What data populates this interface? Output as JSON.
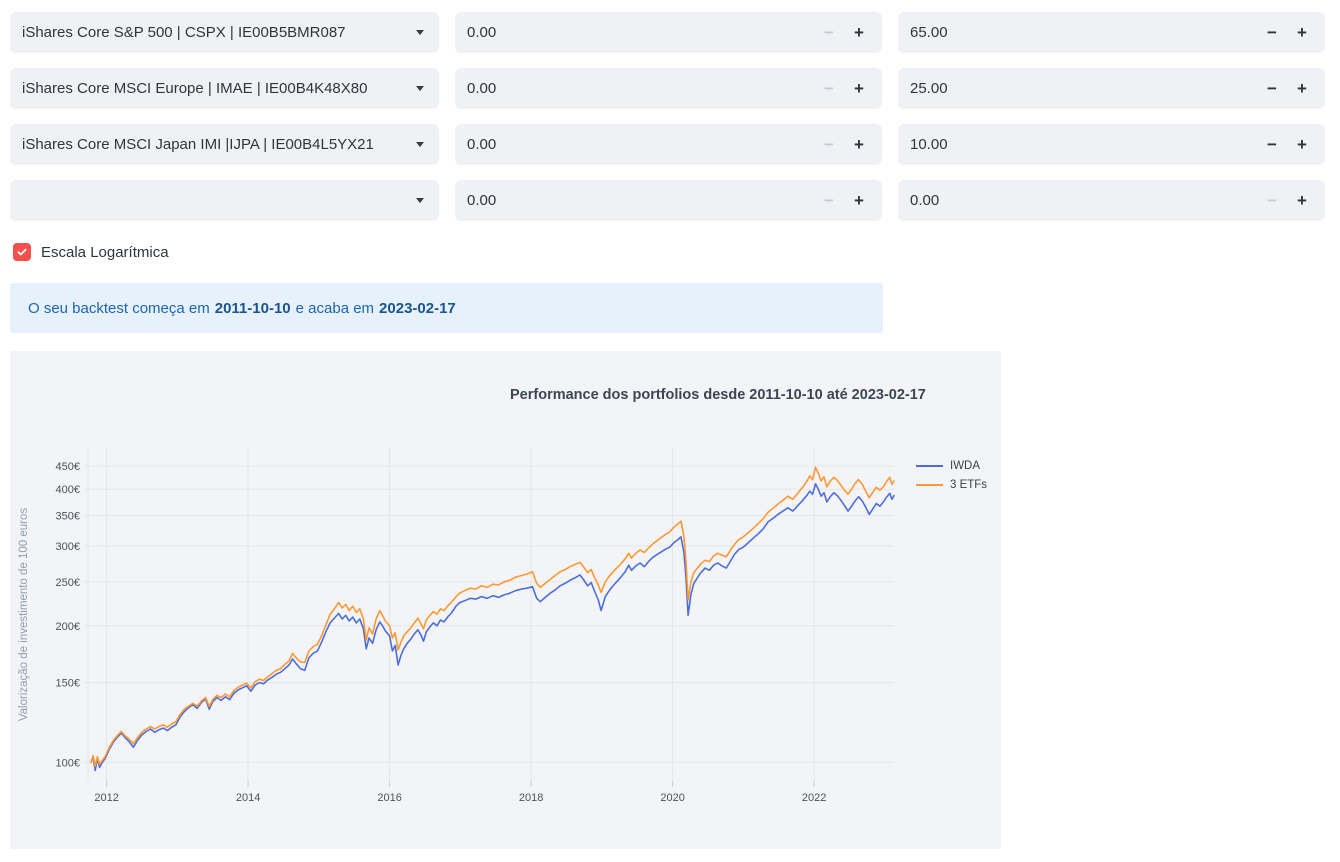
{
  "controls": {
    "minus_label": "−",
    "plus_label": "+",
    "rows": [
      {
        "fund": "iShares Core S&P 500 | CSPX | IE00B5BMR087",
        "value_a": "0.00",
        "value_b": "65.00",
        "a_minus_disabled": true,
        "b_minus_disabled": false
      },
      {
        "fund": "iShares Core MSCI Europe | IMAE | IE00B4K48X80",
        "value_a": "0.00",
        "value_b": "25.00",
        "a_minus_disabled": true,
        "b_minus_disabled": false
      },
      {
        "fund": "iShares Core MSCI Japan IMI |IJPA | IE00B4L5YX21",
        "value_a": "0.00",
        "value_b": "10.00",
        "a_minus_disabled": true,
        "b_minus_disabled": false
      },
      {
        "fund": "",
        "value_a": "0.00",
        "value_b": "0.00",
        "a_minus_disabled": true,
        "b_minus_disabled": true
      }
    ]
  },
  "log_scale_checkbox": {
    "label": "Escala Logarítmica",
    "checked": true,
    "color": "#f4514e"
  },
  "alert": {
    "text_before": "O seu backtest começa em",
    "start_date": "2011-10-10",
    "text_middle": "e acaba em",
    "end_date": "2023-02-17"
  },
  "chart_data": {
    "type": "line",
    "title": "Performance dos portfolios desde 2011-10-10 até 2023-02-17",
    "ylabel": "Valorização de investimento de 100 euros",
    "y_scale": "log",
    "grid": true,
    "legend_position": "right",
    "y_ticks": [
      100,
      150,
      200,
      250,
      300,
      350,
      400,
      450
    ],
    "y_tick_suffix": "€",
    "x_ticks": [
      2012,
      2014,
      2016,
      2018,
      2020,
      2022
    ],
    "xlim": [
      2011.78,
      2023.13
    ],
    "ylim": [
      91,
      493
    ],
    "grid_color": "#e3e6eb",
    "tick_color": "#c9ced6",
    "x": [
      2011.78,
      2011.81,
      2011.84,
      2011.87,
      2011.9,
      2011.94,
      2011.98,
      2012.04,
      2012.1,
      2012.16,
      2012.21,
      2012.26,
      2012.32,
      2012.38,
      2012.44,
      2012.5,
      2012.56,
      2012.62,
      2012.68,
      2012.74,
      2012.8,
      2012.86,
      2012.92,
      2012.98,
      2013.04,
      2013.1,
      2013.16,
      2013.22,
      2013.28,
      2013.34,
      2013.4,
      2013.45,
      2013.5,
      2013.56,
      2013.62,
      2013.68,
      2013.74,
      2013.8,
      2013.86,
      2013.92,
      2013.98,
      2014.04,
      2014.1,
      2014.16,
      2014.22,
      2014.28,
      2014.34,
      2014.4,
      2014.46,
      2014.52,
      2014.58,
      2014.63,
      2014.68,
      2014.74,
      2014.8,
      2014.86,
      2014.92,
      2014.98,
      2015.04,
      2015.1,
      2015.16,
      2015.22,
      2015.28,
      2015.33,
      2015.38,
      2015.43,
      2015.48,
      2015.53,
      2015.58,
      2015.63,
      2015.67,
      2015.71,
      2015.76,
      2015.81,
      2015.86,
      2015.9,
      2015.94,
      2016.0,
      2016.04,
      2016.08,
      2016.12,
      2016.16,
      2016.2,
      2016.25,
      2016.3,
      2016.35,
      2016.4,
      2016.45,
      2016.48,
      2016.52,
      2016.57,
      2016.62,
      2016.67,
      2016.72,
      2016.77,
      2016.82,
      2016.88,
      2016.94,
      2016.99,
      2017.06,
      2017.14,
      2017.22,
      2017.3,
      2017.38,
      2017.46,
      2017.54,
      2017.62,
      2017.7,
      2017.78,
      2017.86,
      2017.94,
      2018.02,
      2018.08,
      2018.13,
      2018.2,
      2018.27,
      2018.34,
      2018.41,
      2018.48,
      2018.55,
      2018.62,
      2018.69,
      2018.74,
      2018.8,
      2018.85,
      2018.9,
      2018.95,
      2018.99,
      2019.05,
      2019.12,
      2019.19,
      2019.26,
      2019.33,
      2019.38,
      2019.42,
      2019.48,
      2019.54,
      2019.6,
      2019.66,
      2019.72,
      2019.78,
      2019.84,
      2019.9,
      2019.96,
      2020.02,
      2020.08,
      2020.12,
      2020.16,
      2020.19,
      2020.22,
      2020.26,
      2020.3,
      2020.35,
      2020.4,
      2020.46,
      2020.52,
      2020.58,
      2020.64,
      2020.7,
      2020.76,
      2020.82,
      2020.88,
      2020.94,
      2021.0,
      2021.07,
      2021.14,
      2021.21,
      2021.28,
      2021.35,
      2021.42,
      2021.49,
      2021.56,
      2021.63,
      2021.7,
      2021.77,
      2021.84,
      2021.9,
      2021.94,
      2021.98,
      2022.02,
      2022.06,
      2022.1,
      2022.14,
      2022.18,
      2022.23,
      2022.28,
      2022.33,
      2022.38,
      2022.43,
      2022.48,
      2022.53,
      2022.58,
      2022.63,
      2022.68,
      2022.73,
      2022.78,
      2022.83,
      2022.88,
      2022.93,
      2022.98,
      2023.03,
      2023.07,
      2023.1,
      2023.13
    ],
    "series": [
      {
        "name": "IWDA",
        "color": "#4d6ed7",
        "values": [
          100,
          103,
          96,
          102,
          97.5,
          100,
          102,
          107,
          111,
          114,
          116,
          113.5,
          111,
          108,
          112,
          115,
          117,
          118.5,
          116.5,
          118,
          119,
          117.5,
          119.5,
          121,
          126,
          129.5,
          132,
          134,
          131.5,
          135.5,
          138,
          131,
          136,
          139,
          137,
          139.5,
          137.5,
          142,
          144.5,
          146,
          147.5,
          143.5,
          148,
          150,
          149,
          152,
          154,
          156.5,
          158,
          161,
          164,
          169,
          165,
          161,
          159.5,
          170,
          174,
          176,
          184,
          194,
          203,
          208,
          213,
          207,
          211,
          205,
          209,
          203,
          207,
          197,
          178,
          188,
          183,
          196,
          204,
          200,
          195,
          190,
          176,
          181,
          164,
          172,
          178,
          183,
          187,
          192,
          196,
          190,
          185,
          194,
          199,
          203,
          200,
          206,
          204,
          209,
          214,
          221,
          225,
          227,
          230,
          229,
          232,
          230,
          233,
          231,
          234,
          236,
          239,
          241,
          242,
          244,
          230,
          226,
          231,
          236,
          240,
          245,
          248,
          252,
          255,
          259,
          253,
          245,
          249,
          238,
          228,
          216,
          232,
          241,
          248,
          255,
          263,
          272,
          265,
          271,
          275,
          270,
          277,
          283,
          287,
          291,
          295,
          298,
          305,
          310,
          314,
          290,
          255,
          211,
          235,
          248,
          255,
          262,
          268,
          265,
          272,
          275,
          271,
          268,
          278,
          288,
          295,
          298,
          305,
          312,
          319,
          327,
          339,
          345,
          352,
          358,
          364,
          358,
          368,
          378,
          388,
          396,
          390,
          411,
          400,
          386,
          393,
          375,
          385,
          393,
          387,
          378,
          368,
          358,
          367,
          377,
          385,
          377,
          365,
          352,
          362,
          372,
          367,
          375,
          385,
          392,
          380,
          387
        ]
      },
      {
        "name": "3 ETFs",
        "color": "#ff9733",
        "values": [
          100,
          103.5,
          98,
          103,
          99,
          101,
          103,
          108,
          112,
          115,
          117,
          114.5,
          112.5,
          110,
          113.5,
          116.5,
          118.5,
          120,
          118.5,
          120,
          121,
          119.5,
          121.5,
          123,
          127.5,
          131,
          133,
          135,
          133,
          136.5,
          139,
          133,
          137.5,
          140.5,
          139,
          141.5,
          139.5,
          144,
          146.5,
          148,
          149.5,
          146,
          150.5,
          152.5,
          151.5,
          154.5,
          157,
          159.5,
          161,
          164.5,
          167.5,
          174,
          170,
          166.5,
          166,
          176,
          180,
          182,
          190,
          201,
          212,
          218,
          225,
          219,
          223,
          216,
          221,
          214,
          218,
          207,
          186,
          198,
          192,
          207,
          216,
          211,
          205,
          200,
          188,
          193,
          177,
          184,
          190,
          194,
          198,
          203,
          208,
          201,
          197,
          206,
          211,
          215,
          212,
          218,
          216,
          221,
          226,
          232,
          236,
          239,
          242,
          241,
          245,
          243,
          247,
          246,
          250,
          252,
          256,
          258,
          260,
          263,
          248,
          243,
          248,
          253,
          258,
          263,
          266,
          270,
          273,
          276,
          270,
          262,
          266,
          255,
          246,
          237,
          250,
          259,
          266,
          273,
          281,
          289,
          282,
          289,
          294,
          290,
          297,
          303,
          308,
          313,
          318,
          322,
          330,
          336,
          340,
          315,
          278,
          228,
          250,
          262,
          268,
          274,
          279,
          277,
          285,
          289,
          286,
          284,
          294,
          303,
          310,
          314,
          321,
          328,
          336,
          344,
          356,
          363,
          371,
          378,
          386,
          380,
          392,
          404,
          417,
          428,
          420,
          447,
          434,
          417,
          426,
          405,
          417,
          425,
          418,
          408,
          398,
          390,
          400,
          412,
          420,
          410,
          396,
          383,
          394,
          404,
          398,
          405,
          417,
          425,
          410,
          417
        ]
      }
    ]
  }
}
